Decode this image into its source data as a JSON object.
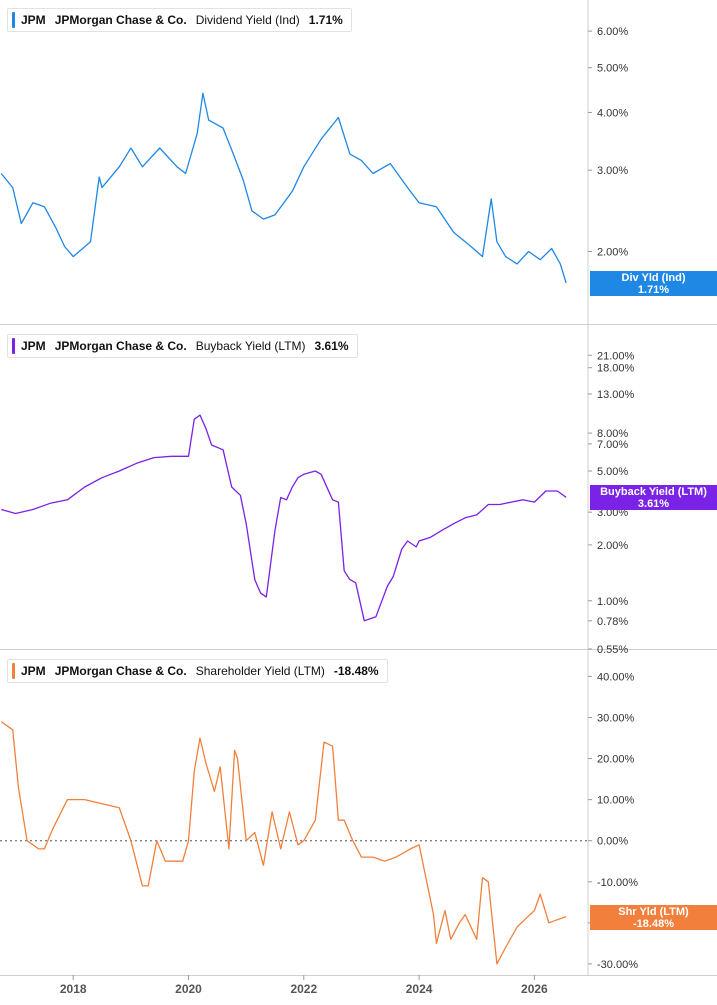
{
  "chart_data": [
    {
      "type": "line",
      "ticker": "JPM",
      "company": "JPMorgan Chase & Co.",
      "metric": "Dividend Yield (Ind)",
      "current_value": "1.71%",
      "tag_label": "Div Yld (Ind)",
      "tag_value": "1.71%",
      "color": "#1f88e5",
      "scale": "log",
      "ylim": [
        1.45,
        6.6
      ],
      "y_ticks": [
        "6.00%",
        "5.00%",
        "4.00%",
        "3.00%",
        "2.00%"
      ],
      "y_tick_values": [
        6,
        5,
        4,
        3,
        2
      ],
      "series": [
        {
          "x": [
            2016.75,
            2016.95,
            2017.1,
            2017.3,
            2017.5,
            2017.7,
            2017.85,
            2018.0,
            2018.3,
            2018.45,
            2018.5,
            2018.8,
            2019.0,
            2019.2,
            2019.5,
            2019.8,
            2019.95,
            2020.15,
            2020.25,
            2020.35,
            2020.6,
            2020.8,
            2020.95,
            2021.1,
            2021.3,
            2021.5,
            2021.8,
            2022.0,
            2022.3,
            2022.6,
            2022.8,
            2023.0,
            2023.2,
            2023.5,
            2023.8,
            2024.0,
            2024.3,
            2024.6,
            2024.9,
            2025.1,
            2025.25,
            2025.35,
            2025.5,
            2025.7,
            2025.9,
            2026.1,
            2026.3,
            2026.45,
            2026.55
          ],
          "values": [
            2.95,
            2.75,
            2.3,
            2.55,
            2.5,
            2.25,
            2.05,
            1.95,
            2.1,
            2.9,
            2.75,
            3.05,
            3.35,
            3.05,
            3.35,
            3.05,
            2.95,
            3.6,
            4.4,
            3.85,
            3.7,
            3.2,
            2.85,
            2.45,
            2.35,
            2.4,
            2.7,
            3.05,
            3.5,
            3.9,
            3.25,
            3.15,
            2.95,
            3.1,
            2.75,
            2.55,
            2.5,
            2.2,
            2.05,
            1.95,
            2.6,
            2.1,
            1.95,
            1.88,
            2.0,
            1.92,
            2.03,
            1.88,
            1.71
          ]
        }
      ]
    },
    {
      "type": "line",
      "ticker": "JPM",
      "company": "JPMorgan Chase & Co.",
      "metric": "Buyback Yield (LTM)",
      "current_value": "3.61%",
      "tag_label": "Buyback Yield (LTM)",
      "tag_value": "3.61%",
      "color": "#7a22e6",
      "scale": "log",
      "ylim": [
        0.55,
        27
      ],
      "y_ticks": [
        "21.00%",
        "18.00%",
        "13.00%",
        "8.00%",
        "7.00%",
        "5.00%",
        "3.00%",
        "2.00%",
        "1.00%",
        "0.78%",
        "0.55%"
      ],
      "y_tick_values": [
        21,
        18,
        13,
        8,
        7,
        5,
        3,
        2,
        1,
        0.78,
        0.55
      ],
      "series": [
        {
          "x": [
            2016.75,
            2017.0,
            2017.3,
            2017.6,
            2017.9,
            2018.2,
            2018.5,
            2018.8,
            2019.1,
            2019.4,
            2019.7,
            2020.0,
            2020.1,
            2020.2,
            2020.3,
            2020.4,
            2020.6,
            2020.75,
            2020.9,
            2021.0,
            2021.15,
            2021.25,
            2021.35,
            2021.5,
            2021.6,
            2021.7,
            2021.8,
            2021.9,
            2022.0,
            2022.2,
            2022.3,
            2022.5,
            2022.6,
            2022.7,
            2022.8,
            2022.9,
            2023.05,
            2023.15,
            2023.25,
            2023.45,
            2023.55,
            2023.7,
            2023.8,
            2023.95,
            2024.0,
            2024.2,
            2024.4,
            2024.6,
            2024.8,
            2025.0,
            2025.2,
            2025.4,
            2025.6,
            2025.8,
            2026.0,
            2026.2,
            2026.4,
            2026.55
          ],
          "values": [
            3.1,
            2.95,
            3.1,
            3.35,
            3.5,
            4.1,
            4.6,
            5.0,
            5.5,
            5.9,
            6.0,
            6.0,
            9.5,
            10.0,
            8.5,
            6.9,
            6.5,
            4.1,
            3.7,
            2.6,
            1.3,
            1.1,
            1.05,
            2.4,
            3.6,
            3.5,
            4.1,
            4.6,
            4.8,
            5.0,
            4.8,
            3.5,
            3.4,
            1.45,
            1.3,
            1.25,
            0.78,
            0.8,
            0.82,
            1.2,
            1.35,
            1.9,
            2.1,
            1.95,
            2.1,
            2.2,
            2.4,
            2.6,
            2.8,
            2.9,
            3.3,
            3.3,
            3.4,
            3.5,
            3.4,
            3.9,
            3.9,
            3.61
          ]
        }
      ]
    },
    {
      "type": "line",
      "ticker": "JPM",
      "company": "JPMorgan Chase & Co.",
      "metric": "Shareholder Yield (LTM)",
      "current_value": "-18.48%",
      "tag_label": "Shr Yld (LTM)",
      "tag_value": "-18.48%",
      "color": "#f2803c",
      "scale": "linear",
      "ylim": [
        -31,
        44
      ],
      "y_ticks": [
        "40.00%",
        "30.00%",
        "20.00%",
        "10.00%",
        "0.00%",
        "-10.00%",
        "-20.00%",
        "-30.00%"
      ],
      "y_tick_values": [
        40,
        30,
        20,
        10,
        0,
        -10,
        -20,
        -30
      ],
      "zero_line": true,
      "series": [
        {
          "x": [
            2016.75,
            2016.95,
            2017.05,
            2017.2,
            2017.4,
            2017.5,
            2017.65,
            2017.9,
            2018.2,
            2018.5,
            2018.8,
            2019.0,
            2019.2,
            2019.3,
            2019.45,
            2019.6,
            2019.9,
            2020.0,
            2020.1,
            2020.2,
            2020.3,
            2020.45,
            2020.55,
            2020.7,
            2020.8,
            2020.85,
            2021.0,
            2021.15,
            2021.3,
            2021.45,
            2021.6,
            2021.75,
            2021.9,
            2022.0,
            2022.2,
            2022.35,
            2022.5,
            2022.6,
            2022.7,
            2022.85,
            2023.0,
            2023.2,
            2023.4,
            2023.6,
            2023.85,
            2024.0,
            2024.25,
            2024.3,
            2024.45,
            2024.55,
            2024.7,
            2024.8,
            2025.0,
            2025.1,
            2025.2,
            2025.35,
            2025.5,
            2025.7,
            2025.85,
            2026.0,
            2026.1,
            2026.25,
            2026.45,
            2026.55
          ],
          "values": [
            29,
            27,
            13,
            0,
            -2,
            -2,
            3,
            10,
            10,
            9,
            8,
            0,
            -11,
            -11,
            0,
            -5,
            -5,
            0,
            17,
            25,
            19,
            12,
            18,
            -2,
            22,
            20,
            0,
            2,
            -6,
            7,
            -2,
            7,
            -1,
            0,
            5,
            24,
            23,
            5,
            5,
            0,
            -4,
            -4,
            -5,
            -4,
            -2,
            -1,
            -18,
            -25,
            -17,
            -24,
            -20,
            -18,
            -24,
            -9,
            -10,
            -30,
            -26,
            -21,
            -19,
            -17,
            -13,
            -20,
            -19,
            -18.48
          ]
        }
      ]
    }
  ],
  "x_axis": {
    "ticks": [
      "2018",
      "2020",
      "2022",
      "2024",
      "2026"
    ],
    "tick_values": [
      2018,
      2020,
      2022,
      2024,
      2026
    ]
  }
}
